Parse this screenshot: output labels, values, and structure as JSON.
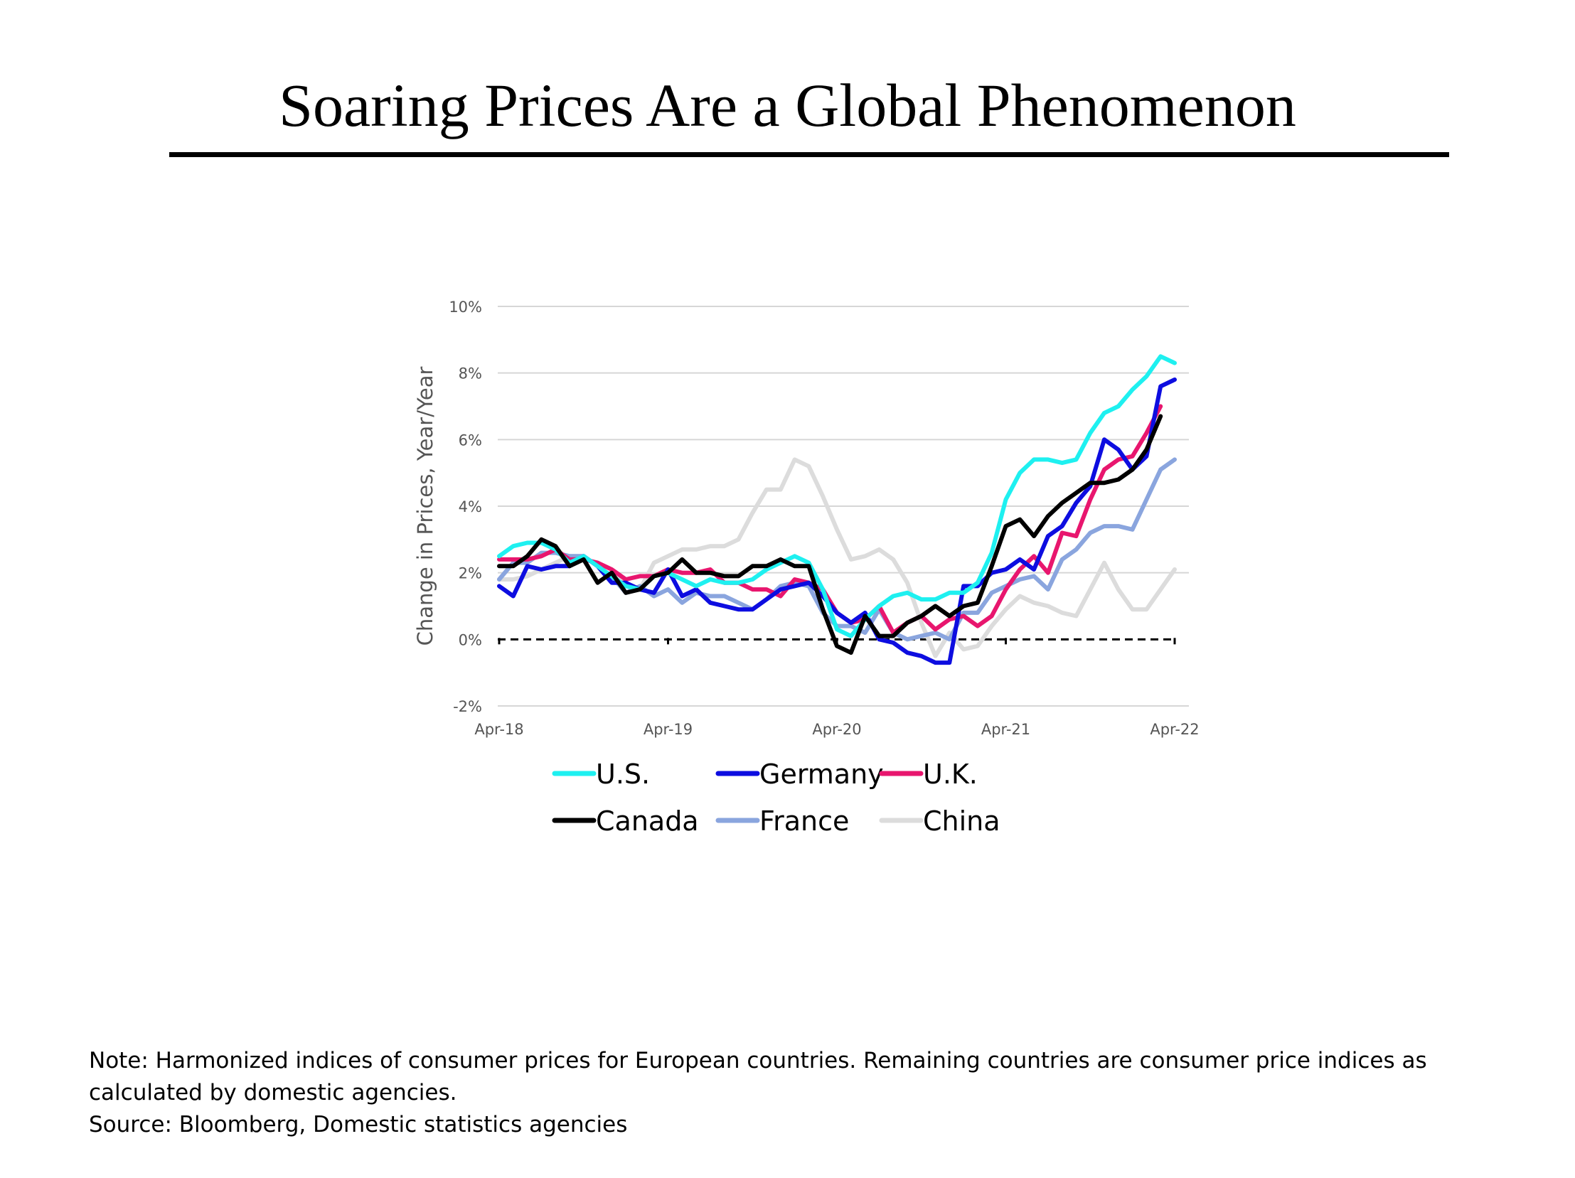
{
  "title": "Soaring Prices Are a Global Phenomenon",
  "notes": {
    "line1": "Note: Harmonized indices of consumer prices for European countries. Remaining countries are consumer price indices as",
    "line2": "calculated by domestic agencies.",
    "source": "Source: Bloomberg, Domestic statistics agencies"
  },
  "chart_data": {
    "type": "line",
    "ylabel": "Change in Prices, Year/Year",
    "xlabel": "",
    "x": [
      "Apr-18",
      "May-18",
      "Jun-18",
      "Jul-18",
      "Aug-18",
      "Sep-18",
      "Oct-18",
      "Nov-18",
      "Dec-18",
      "Jan-19",
      "Feb-19",
      "Mar-19",
      "Apr-19",
      "May-19",
      "Jun-19",
      "Jul-19",
      "Aug-19",
      "Sep-19",
      "Oct-19",
      "Nov-19",
      "Dec-19",
      "Jan-20",
      "Feb-20",
      "Mar-20",
      "Apr-20",
      "May-20",
      "Jun-20",
      "Jul-20",
      "Aug-20",
      "Sep-20",
      "Oct-20",
      "Nov-20",
      "Dec-20",
      "Jan-21",
      "Feb-21",
      "Mar-21",
      "Apr-21",
      "May-21",
      "Jun-21",
      "Jul-21",
      "Aug-21",
      "Sep-21",
      "Oct-21",
      "Nov-21",
      "Dec-21",
      "Jan-22",
      "Feb-22",
      "Mar-22",
      "Apr-22"
    ],
    "x_tick_labels": [
      "Apr-18",
      "Apr-19",
      "Apr-20",
      "Apr-21",
      "Apr-22"
    ],
    "y_tick_labels": [
      "10%",
      "8%",
      "6%",
      "4%",
      "2%",
      "0%",
      "-2%"
    ],
    "y_ticks": [
      10,
      8,
      6,
      4,
      2,
      0,
      -2
    ],
    "ylim": [
      -2,
      10
    ],
    "grid": true,
    "zero_line": "dashed",
    "legend_position": "bottom",
    "series": [
      {
        "name": "U.S.",
        "color": "#1ef0f0",
        "values": [
          2.5,
          2.8,
          2.9,
          2.9,
          2.7,
          2.3,
          2.5,
          2.2,
          1.9,
          1.6,
          1.5,
          1.9,
          2.0,
          1.8,
          1.6,
          1.8,
          1.7,
          1.7,
          1.8,
          2.1,
          2.3,
          2.5,
          2.3,
          1.5,
          0.3,
          0.1,
          0.6,
          1.0,
          1.3,
          1.4,
          1.2,
          1.2,
          1.4,
          1.4,
          1.7,
          2.6,
          4.2,
          5.0,
          5.4,
          5.4,
          5.3,
          5.4,
          6.2,
          6.8,
          7.0,
          7.5,
          7.9,
          8.5,
          8.3
        ]
      },
      {
        "name": "Germany",
        "color": "#0d0de0",
        "values": [
          1.6,
          1.3,
          2.2,
          2.1,
          2.2,
          2.2,
          2.5,
          2.2,
          1.7,
          1.7,
          1.5,
          1.4,
          2.1,
          1.3,
          1.5,
          1.1,
          1.0,
          0.9,
          0.9,
          1.2,
          1.5,
          1.6,
          1.7,
          1.3,
          0.8,
          0.5,
          0.8,
          0.0,
          -0.1,
          -0.4,
          -0.5,
          -0.7,
          -0.7,
          1.6,
          1.6,
          2.0,
          2.1,
          2.4,
          2.1,
          3.1,
          3.4,
          4.1,
          4.6,
          6.0,
          5.7,
          5.1,
          5.5,
          7.6,
          7.8
        ]
      },
      {
        "name": "U.K.",
        "color": "#e8166e",
        "values": [
          2.4,
          2.4,
          2.4,
          2.5,
          2.7,
          2.4,
          2.4,
          2.3,
          2.1,
          1.8,
          1.9,
          1.9,
          2.1,
          2.0,
          2.0,
          2.1,
          1.7,
          1.7,
          1.5,
          1.5,
          1.3,
          1.8,
          1.7,
          1.5,
          0.8,
          0.5,
          0.6,
          1.0,
          0.2,
          0.5,
          0.7,
          0.3,
          0.6,
          0.7,
          0.4,
          0.7,
          1.5,
          2.1,
          2.5,
          2.0,
          3.2,
          3.1,
          4.2,
          5.1,
          5.4,
          5.5,
          6.2,
          7.0,
          null
        ]
      },
      {
        "name": "Canada",
        "color": "#000000",
        "values": [
          2.2,
          2.2,
          2.5,
          3.0,
          2.8,
          2.2,
          2.4,
          1.7,
          2.0,
          1.4,
          1.5,
          1.9,
          2.0,
          2.4,
          2.0,
          2.0,
          1.9,
          1.9,
          2.2,
          2.2,
          2.4,
          2.2,
          2.2,
          0.9,
          -0.2,
          -0.4,
          0.7,
          0.1,
          0.1,
          0.5,
          0.7,
          1.0,
          0.7,
          1.0,
          1.1,
          2.2,
          3.4,
          3.6,
          3.1,
          3.7,
          4.1,
          4.4,
          4.7,
          4.7,
          4.8,
          5.1,
          5.7,
          6.7,
          null
        ]
      },
      {
        "name": "France",
        "color": "#8aa5de",
        "values": [
          1.8,
          2.3,
          2.3,
          2.6,
          2.6,
          2.5,
          2.5,
          2.2,
          1.9,
          1.4,
          1.6,
          1.3,
          1.5,
          1.1,
          1.4,
          1.3,
          1.3,
          1.1,
          0.9,
          1.2,
          1.6,
          1.7,
          1.6,
          0.8,
          0.4,
          0.4,
          0.2,
          0.9,
          0.2,
          0.0,
          0.1,
          0.2,
          0.0,
          0.8,
          0.8,
          1.4,
          1.6,
          1.8,
          1.9,
          1.5,
          2.4,
          2.7,
          3.2,
          3.4,
          3.4,
          3.3,
          4.2,
          5.1,
          5.4
        ]
      },
      {
        "name": "China",
        "color": "#dcdcdc",
        "values": [
          1.8,
          1.8,
          1.9,
          2.1,
          2.3,
          2.5,
          2.5,
          2.2,
          1.9,
          1.7,
          1.5,
          2.3,
          2.5,
          2.7,
          2.7,
          2.8,
          2.8,
          3.0,
          3.8,
          4.5,
          4.5,
          5.4,
          5.2,
          4.3,
          3.3,
          2.4,
          2.5,
          2.7,
          2.4,
          1.7,
          0.5,
          -0.5,
          0.2,
          -0.3,
          -0.2,
          0.4,
          0.9,
          1.3,
          1.1,
          1.0,
          0.8,
          0.7,
          1.5,
          2.3,
          1.5,
          0.9,
          0.9,
          1.5,
          2.1
        ]
      }
    ]
  }
}
